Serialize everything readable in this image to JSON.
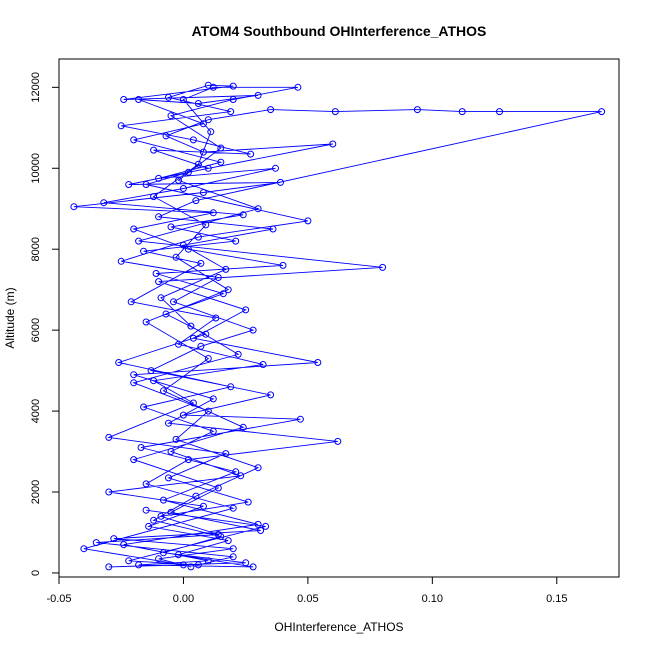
{
  "chart_data": {
    "type": "line",
    "title": "ATOM4 Southbound OHInterference_ATHOS",
    "xlabel": "OHInterference_ATHOS",
    "ylabel": "Altitude (m)",
    "xlim": [
      -0.05,
      0.175
    ],
    "ylim": [
      -100,
      12700
    ],
    "x_ticks": [
      -0.05,
      0.0,
      0.05,
      0.1,
      0.15
    ],
    "x_tick_labels": [
      "-0.05",
      "0.00",
      "0.05",
      "0.10",
      "0.15"
    ],
    "y_ticks": [
      0,
      2000,
      4000,
      6000,
      8000,
      10000,
      12000
    ],
    "y_tick_labels": [
      "0",
      "2000",
      "4000",
      "6000",
      "8000",
      "10000",
      "12000"
    ],
    "grid": false,
    "series_color": "#0000ff",
    "marker": "open-circle",
    "series": [
      {
        "points": [
          [
            0.003,
            150
          ],
          [
            -0.01,
            350
          ],
          [
            0.02,
            600
          ],
          [
            -0.028,
            850
          ],
          [
            0.031,
            1050
          ],
          [
            -0.005,
            1500
          ],
          [
            0.014,
            2100
          ],
          [
            -0.02,
            2800
          ],
          [
            0.024,
            3600
          ],
          [
            -0.008,
            4500
          ],
          [
            0.01,
            5300
          ],
          [
            -0.015,
            6200
          ],
          [
            0.018,
            7000
          ],
          [
            -0.003,
            7800
          ],
          [
            0.009,
            8600
          ],
          [
            -0.012,
            9300
          ],
          [
            0.006,
            10100
          ],
          [
            0.011,
            10900
          ],
          [
            0.0,
            11700
          ],
          [
            0.012,
            12000
          ],
          [
            0.046,
            12000
          ],
          [
            0.02,
            11700
          ],
          [
            -0.005,
            11300
          ],
          [
            0.015,
            10500
          ],
          [
            -0.002,
            9700
          ],
          [
            0.03,
            9000
          ],
          [
            -0.018,
            8200
          ],
          [
            0.08,
            7550
          ],
          [
            -0.01,
            7200
          ],
          [
            0.025,
            6500
          ],
          [
            0.004,
            5800
          ],
          [
            0.054,
            5200
          ],
          [
            -0.02,
            4900
          ],
          [
            0.012,
            4300
          ],
          [
            -0.006,
            3700
          ],
          [
            0.062,
            3250
          ],
          [
            0.002,
            2800
          ],
          [
            -0.015,
            2200
          ],
          [
            0.02,
            1600
          ],
          [
            -0.04,
            600
          ],
          [
            0.0,
            200
          ],
          [
            -0.03,
            150
          ],
          [
            0.025,
            250
          ],
          [
            -0.008,
            500
          ],
          [
            0.015,
            900
          ],
          [
            -0.012,
            1300
          ],
          [
            0.005,
            1900
          ],
          [
            0.03,
            2600
          ],
          [
            -0.003,
            3300
          ],
          [
            0.01,
            4000
          ],
          [
            -0.02,
            4700
          ],
          [
            0.022,
            5400
          ],
          [
            0.003,
            6100
          ],
          [
            -0.009,
            6800
          ],
          [
            0.017,
            7500
          ],
          [
            0.0,
            8100
          ],
          [
            0.036,
            8500
          ],
          [
            -0.01,
            8800
          ],
          [
            0.005,
            9200
          ],
          [
            0.168,
            11400
          ],
          [
            0.127,
            11400
          ],
          [
            0.112,
            11400
          ],
          [
            0.094,
            11450
          ],
          [
            0.061,
            11400
          ],
          [
            0.035,
            11450
          ],
          [
            0.01,
            11200
          ],
          [
            -0.007,
            10800
          ],
          [
            0.008,
            10400
          ],
          [
            0.06,
            10600
          ],
          [
            0.002,
            9900
          ],
          [
            -0.015,
            9600
          ],
          [
            0.05,
            8700
          ],
          [
            0.006,
            8300
          ],
          [
            -0.025,
            7700
          ],
          [
            0.014,
            7300
          ],
          [
            -0.004,
            6700
          ],
          [
            0.028,
            6000
          ],
          [
            0.007,
            5600
          ],
          [
            -0.013,
            5000
          ],
          [
            0.035,
            4400
          ],
          [
            0.0,
            3900
          ],
          [
            0.047,
            3800
          ],
          [
            -0.017,
            3100
          ],
          [
            0.021,
            2500
          ],
          [
            -0.008,
            1800
          ],
          [
            0.03,
            1200
          ],
          [
            -0.024,
            700
          ],
          [
            0.01,
            300
          ],
          [
            -0.018,
            200
          ],
          [
            0.028,
            150
          ],
          [
            -0.002,
            450
          ],
          [
            0.018,
            800
          ],
          [
            -0.014,
            1150
          ],
          [
            0.008,
            1650
          ],
          [
            -0.03,
            2000
          ],
          [
            0.023,
            2400
          ],
          [
            -0.005,
            3000
          ],
          [
            0.012,
            3500
          ],
          [
            -0.016,
            4100
          ],
          [
            0.019,
            4600
          ],
          [
            -0.026,
            5200
          ],
          [
            0.009,
            5900
          ],
          [
            -0.007,
            6400
          ],
          [
            0.016,
            6900
          ],
          [
            -0.011,
            7400
          ],
          [
            0.04,
            7600
          ],
          [
            0.002,
            8000
          ],
          [
            -0.02,
            8500
          ],
          [
            0.012,
            8900
          ],
          [
            -0.044,
            9050
          ],
          [
            0.008,
            9400
          ],
          [
            0.039,
            9650
          ],
          [
            -0.022,
            9600
          ],
          [
            0.01,
            10000
          ],
          [
            -0.012,
            10450
          ],
          [
            0.027,
            10350
          ],
          [
            0.004,
            10700
          ],
          [
            -0.025,
            11050
          ],
          [
            0.019,
            11400
          ],
          [
            -0.006,
            11750
          ],
          [
            0.01,
            12050
          ],
          [
            0.02,
            12030
          ],
          [
            -0.024,
            11700
          ],
          [
            0.03,
            11800
          ],
          [
            0.006,
            11600
          ],
          [
            -0.018,
            11700
          ],
          [
            0.008,
            11100
          ],
          [
            -0.02,
            10700
          ],
          [
            0.015,
            10150
          ],
          [
            -0.01,
            9750
          ],
          [
            0.037,
            10000
          ],
          [
            0.0,
            9500
          ],
          [
            -0.032,
            9150
          ],
          [
            0.024,
            8850
          ],
          [
            -0.005,
            8550
          ],
          [
            0.021,
            8200
          ],
          [
            -0.016,
            7950
          ],
          [
            0.007,
            7650
          ],
          [
            -0.021,
            6700
          ],
          [
            0.013,
            6300
          ],
          [
            -0.002,
            5650
          ],
          [
            0.032,
            5150
          ],
          [
            -0.012,
            4750
          ],
          [
            0.004,
            4200
          ],
          [
            -0.03,
            3350
          ],
          [
            0.017,
            2950
          ],
          [
            -0.006,
            2350
          ],
          [
            0.026,
            1750
          ],
          [
            -0.009,
            1400
          ],
          [
            0.014,
            950
          ],
          [
            -0.035,
            750
          ],
          [
            0.02,
            400
          ],
          [
            0.006,
            200
          ],
          [
            -0.022,
            300
          ],
          [
            0.033,
            1150
          ],
          [
            -0.015,
            1550
          ]
        ]
      }
    ]
  }
}
